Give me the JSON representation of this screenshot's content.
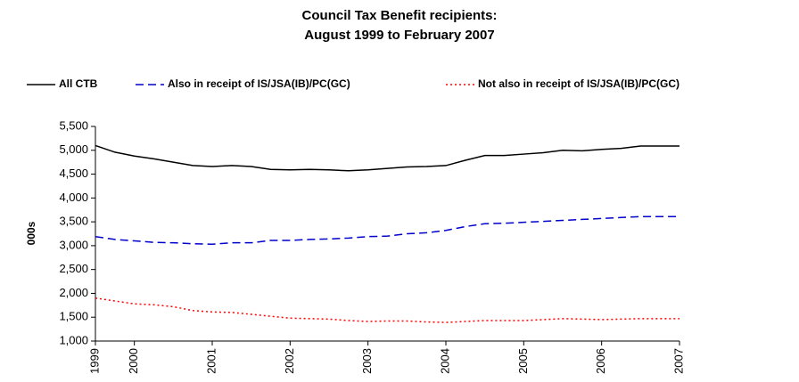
{
  "chart_data": {
    "type": "line",
    "title": [
      "Council Tax Benefit recipients:",
      "August 1999 to February 2007"
    ],
    "ylabel": "000s",
    "categories": [
      "1999",
      null,
      "2000",
      null,
      null,
      null,
      "2001",
      null,
      null,
      null,
      "2002",
      null,
      null,
      null,
      "2003",
      null,
      null,
      null,
      "2004",
      null,
      null,
      null,
      "2005",
      null,
      null,
      null,
      "2006",
      null,
      null,
      null,
      "2007"
    ],
    "series": [
      {
        "name": "All CTB",
        "color": "#000000",
        "dash": "solid",
        "values": [
          5100,
          4960,
          4880,
          4820,
          4750,
          4680,
          4660,
          4680,
          4660,
          4600,
          4590,
          4600,
          4590,
          4570,
          4590,
          4620,
          4650,
          4660,
          4680,
          4790,
          4890,
          4890,
          4920,
          4950,
          5000,
          4990,
          5020,
          5040,
          5090,
          5090,
          5090
        ]
      },
      {
        "name": "Also in receipt of IS/JSA(IB)/PC(GC)",
        "color": "#0000cc",
        "dash": "dashed",
        "values": [
          3190,
          3130,
          3100,
          3070,
          3060,
          3040,
          3030,
          3060,
          3060,
          3110,
          3110,
          3130,
          3140,
          3160,
          3190,
          3200,
          3250,
          3270,
          3320,
          3400,
          3460,
          3470,
          3490,
          3510,
          3530,
          3550,
          3570,
          3590,
          3610,
          3610,
          3610
        ]
      },
      {
        "name": "Not also in receipt of IS/JSA(IB)/PC(GC)",
        "color": "#ff0000",
        "dash": "dotted",
        "values": [
          1900,
          1840,
          1780,
          1760,
          1720,
          1640,
          1610,
          1600,
          1560,
          1520,
          1480,
          1470,
          1460,
          1430,
          1410,
          1420,
          1420,
          1400,
          1390,
          1410,
          1430,
          1430,
          1430,
          1450,
          1470,
          1460,
          1450,
          1460,
          1470,
          1470,
          1470
        ]
      }
    ],
    "ylim": [
      1000,
      5500
    ],
    "yticks": [
      {
        "value": 1000,
        "label": "1,000"
      },
      {
        "value": 1500,
        "label": "1,500"
      },
      {
        "value": 2000,
        "label": "2,000"
      },
      {
        "value": 2500,
        "label": "2,500"
      },
      {
        "value": 3000,
        "label": "3,000"
      },
      {
        "value": 3500,
        "label": "3,500"
      },
      {
        "value": 4000,
        "label": "4,000"
      },
      {
        "value": 4500,
        "label": "4,500"
      },
      {
        "value": 5000,
        "label": "5,000"
      },
      {
        "value": 5500,
        "label": "5,500"
      }
    ],
    "legend": "top"
  }
}
